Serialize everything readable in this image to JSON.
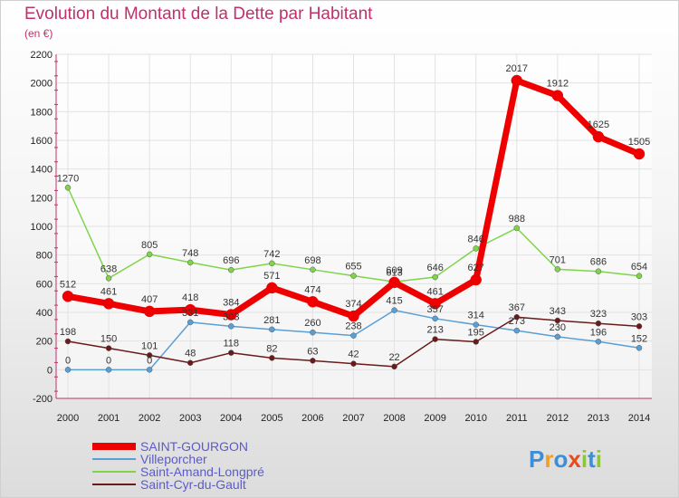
{
  "chart_data": {
    "type": "line",
    "title": "Evolution du Montant de la Dette par Habitant",
    "subtitle": "(en €)",
    "x": [
      "2000",
      "2001",
      "2002",
      "2003",
      "2004",
      "2005",
      "2006",
      "2007",
      "2008",
      "2009",
      "2010",
      "2011",
      "2012",
      "2013",
      "2014"
    ],
    "ylim": [
      -200,
      2200
    ],
    "yticks": [
      -200,
      0,
      200,
      400,
      600,
      800,
      1000,
      1200,
      1400,
      1600,
      1800,
      2000,
      2200
    ],
    "grid": true,
    "legend_position": "bottom-left",
    "series": [
      {
        "name": "SAINT-GOURGON",
        "color": "#ee0000",
        "values": [
          512,
          461,
          407,
          418,
          384,
          571,
          474,
          374,
          609,
          461,
          627,
          2017,
          1912,
          1625,
          1505
        ]
      },
      {
        "name": "Villeporcher",
        "color": "#5a9fd4",
        "values": [
          0,
          0,
          0,
          331,
          303,
          281,
          260,
          238,
          415,
          357,
          314,
          273,
          230,
          196,
          152
        ]
      },
      {
        "name": "Saint-Amand-Longpré",
        "color": "#7fd44a",
        "values": [
          1270,
          638,
          805,
          748,
          696,
          742,
          698,
          655,
          613,
          646,
          846,
          988,
          701,
          686,
          654
        ]
      },
      {
        "name": "Saint-Cyr-du-Gault",
        "color": "#6b1a1a",
        "values": [
          198,
          150,
          101,
          48,
          118,
          82,
          63,
          42,
          22,
          213,
          195,
          367,
          343,
          323,
          303
        ]
      }
    ]
  },
  "logo": {
    "text": "Proxiti"
  }
}
